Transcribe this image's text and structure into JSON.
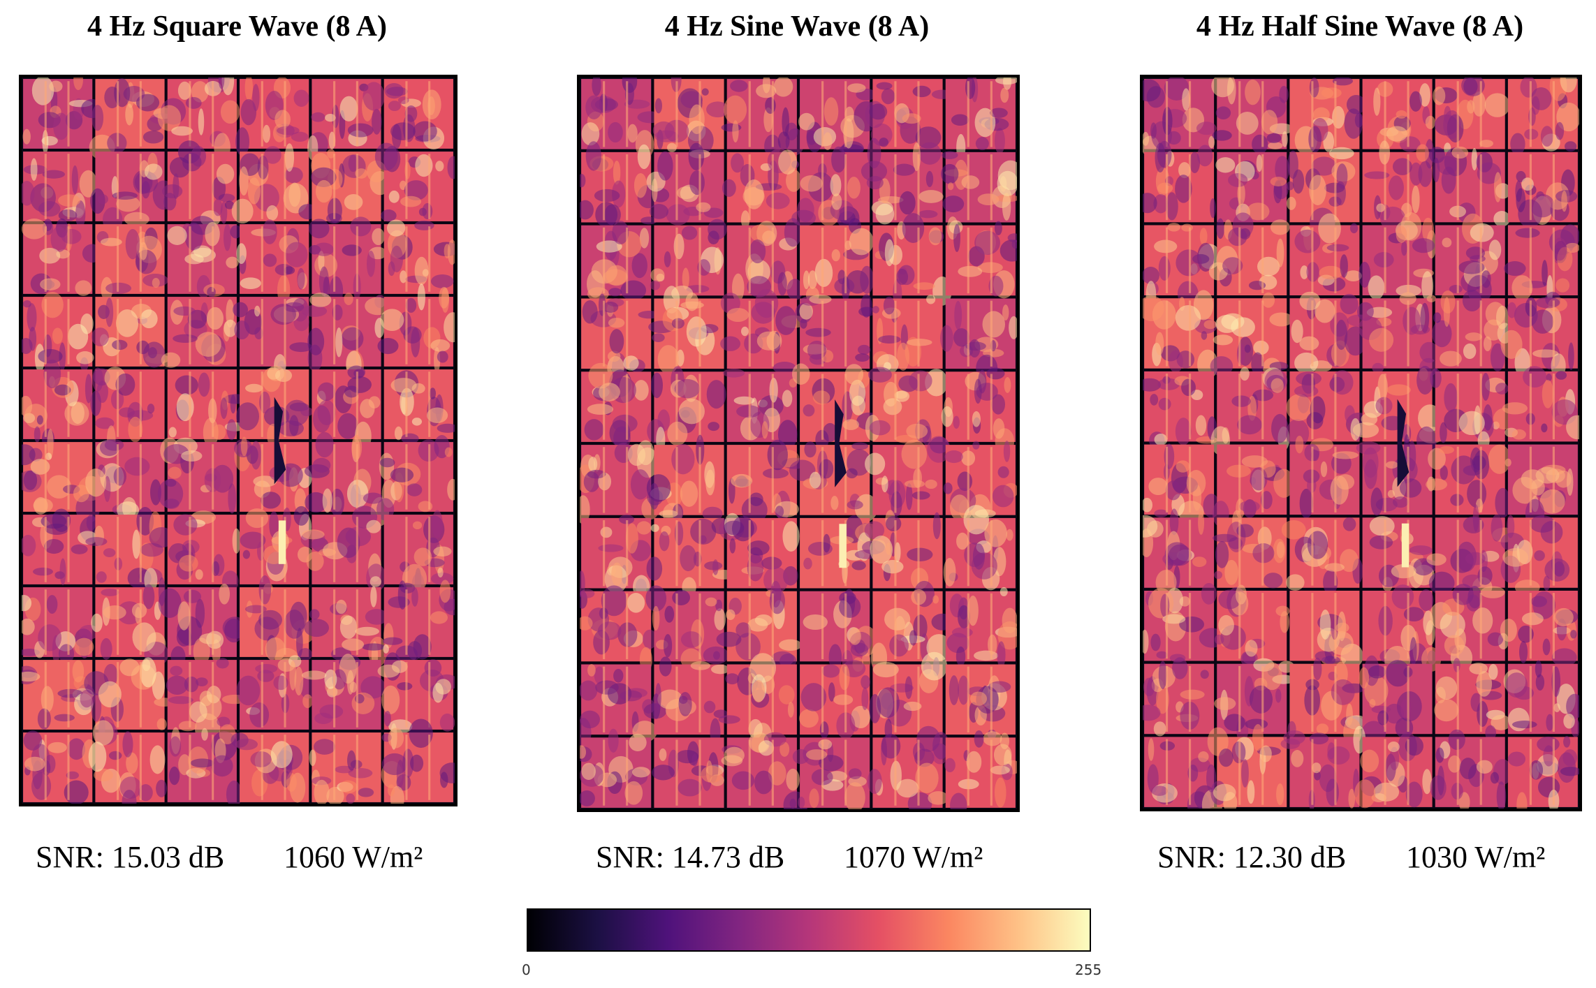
{
  "panels": [
    {
      "title": "4 Hz Square Wave (8 A)",
      "snr": "SNR: 15.03 dB",
      "irradiance": "1060 W/m²",
      "rows": 10,
      "cols": 6
    },
    {
      "title": "4 Hz Sine Wave (8 A)",
      "snr": "SNR: 14.73 dB",
      "irradiance": "1070 W/m²",
      "rows": 10,
      "cols": 6
    },
    {
      "title": "4 Hz Half Sine Wave (8 A)",
      "snr": "SNR: 12.30 dB",
      "irradiance": "1030 W/m²",
      "rows": 10,
      "cols": 6
    }
  ],
  "colorbar": {
    "colormap": "magma",
    "min_label": "0",
    "max_label": "255",
    "stops": [
      "#000004",
      "#1c1044",
      "#4f127b",
      "#812581",
      "#b5367a",
      "#e55064",
      "#fb8761",
      "#fec287",
      "#fcfdbf"
    ]
  }
}
